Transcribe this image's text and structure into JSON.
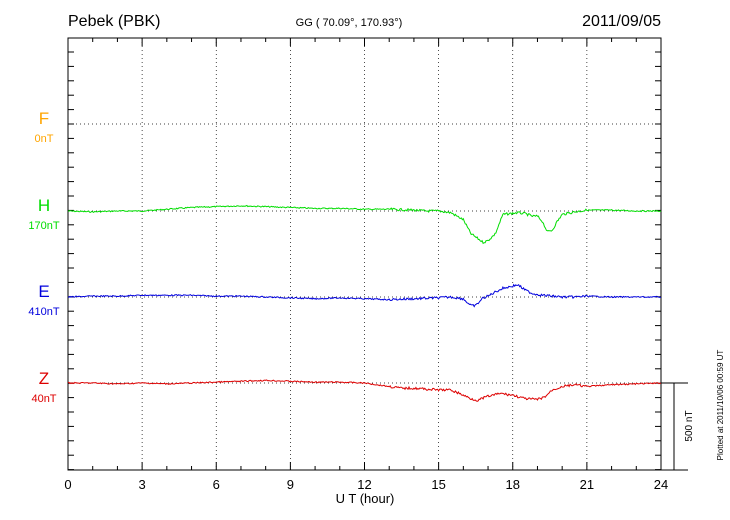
{
  "chart_data": {
    "type": "line",
    "title_left": "Pebek (PBK)",
    "title_center": "GG ( 70.09°, 170.93°)",
    "title_right": "2011/09/05",
    "xlabel": "U T (hour)",
    "xlim": [
      0,
      24
    ],
    "x_ticks": [
      "0",
      "3",
      "6",
      "9",
      "12",
      "15",
      "18",
      "21",
      "24"
    ],
    "grid": true,
    "scale_bar_label": "500 nT",
    "plotted_note": "Plotted at 2011/10/06 00:59 UT",
    "colors": {
      "F": "#ffa500",
      "H": "#00dd00",
      "E": "#0000dd",
      "Z": "#dd0000"
    },
    "series": [
      {
        "name": "F",
        "offset_label": "0nT",
        "values": []
      },
      {
        "name": "H",
        "offset_label": "170nT",
        "x": [
          0,
          1,
          2,
          3,
          4,
          5,
          6,
          7,
          8,
          9,
          10,
          11,
          12,
          13,
          14,
          14.5,
          15,
          15.5,
          16,
          16.3,
          16.6,
          16.8,
          17,
          17.3,
          17.6,
          17.9,
          18.2,
          18.5,
          18.8,
          19,
          19.2,
          19.4,
          19.6,
          19.8,
          20,
          20.5,
          21,
          22,
          23,
          24
        ],
        "values": [
          0,
          -5,
          0,
          0,
          10,
          20,
          25,
          30,
          25,
          20,
          15,
          15,
          10,
          10,
          5,
          0,
          0,
          -10,
          -50,
          -130,
          -160,
          -180,
          -170,
          -130,
          -20,
          -15,
          -10,
          -15,
          -30,
          -30,
          -60,
          -120,
          -110,
          -60,
          -20,
          -5,
          5,
          5,
          0,
          0
        ]
      },
      {
        "name": "E",
        "offset_label": "410nT",
        "x": [
          0,
          1,
          2,
          3,
          4,
          5,
          6,
          7,
          8,
          9,
          10,
          11,
          12,
          13,
          14,
          15,
          15.5,
          16,
          16.3,
          16.5,
          16.8,
          17,
          17.3,
          17.6,
          17.9,
          18.2,
          18.5,
          18.8,
          19.2,
          19.6,
          20,
          20.5,
          21,
          22,
          23,
          24
        ],
        "values": [
          0,
          5,
          5,
          10,
          10,
          10,
          5,
          5,
          0,
          -5,
          -10,
          -5,
          -10,
          -15,
          -10,
          -5,
          0,
          -10,
          -50,
          -50,
          -5,
          5,
          30,
          50,
          60,
          70,
          40,
          20,
          10,
          5,
          0,
          0,
          5,
          0,
          0,
          0
        ]
      },
      {
        "name": "Z",
        "offset_label": "40nT",
        "x": [
          0,
          1,
          2,
          3,
          4,
          5,
          6,
          7,
          8,
          9,
          10,
          11,
          12,
          13,
          13.5,
          14,
          15,
          15.5,
          16,
          16.3,
          16.6,
          16.9,
          17.2,
          17.5,
          18,
          18.5,
          19,
          19.3,
          19.6,
          20,
          20.5,
          21,
          22,
          23,
          24
        ],
        "values": [
          0,
          0,
          -5,
          0,
          -5,
          0,
          5,
          10,
          15,
          10,
          5,
          5,
          0,
          -20,
          -30,
          -30,
          -40,
          -40,
          -70,
          -90,
          -100,
          -80,
          -70,
          -60,
          -70,
          -90,
          -95,
          -80,
          -40,
          -20,
          -10,
          -20,
          -10,
          -5,
          0
        ]
      }
    ]
  }
}
